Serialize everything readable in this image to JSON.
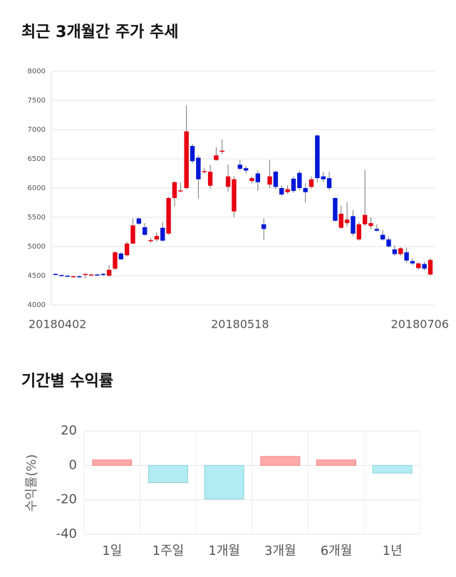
{
  "chart_data": [
    {
      "type": "candlestick",
      "title": "최근 3개월간 주가 추세",
      "categories": [
        "20180402",
        null,
        null,
        null,
        null,
        null,
        null,
        null,
        null,
        null,
        null,
        null,
        null,
        null,
        null,
        null,
        null,
        null,
        null,
        null,
        null,
        null,
        null,
        null,
        null,
        null,
        null,
        null,
        null,
        null,
        null,
        "20180518",
        null,
        null,
        null,
        null,
        null,
        null,
        null,
        null,
        null,
        null,
        null,
        null,
        null,
        null,
        null,
        null,
        null,
        null,
        null,
        null,
        null,
        null,
        null,
        null,
        null,
        null,
        null,
        null,
        null,
        null,
        null,
        "20180706"
      ],
      "open": [
        4530,
        4510,
        4500,
        4490,
        4490,
        4520,
        4510,
        4520,
        4530,
        4500,
        4620,
        4880,
        4850,
        5050,
        5480,
        5330,
        5100,
        5120,
        5320,
        5220,
        5830,
        5950,
        6000,
        6720,
        6520,
        6280,
        6040,
        6480,
        6630,
        6020,
        5600,
        6400,
        6340,
        6120,
        6250,
        5380,
        6060,
        6280,
        6000,
        5930,
        6160,
        6260,
        6000,
        6020,
        6900,
        6200,
        6170,
        5830,
        5320,
        5400,
        5520,
        5120,
        5380,
        5350,
        5300,
        5200,
        5120,
        4950,
        4870,
        4900,
        4750,
        4630,
        4700,
        4520
      ],
      "high": [
        4540,
        4520,
        4510,
        4500,
        4500,
        4530,
        4530,
        4530,
        4540,
        4680,
        4920,
        4900,
        5080,
        5480,
        5500,
        5400,
        5150,
        5250,
        5420,
        5850,
        6120,
        6100,
        7420,
        6760,
        6560,
        6350,
        6400,
        6700,
        6830,
        6400,
        6200,
        6480,
        6380,
        6200,
        6300,
        5480,
        6480,
        6300,
        6050,
        6050,
        6200,
        6300,
        6080,
        6200,
        6920,
        6280,
        6280,
        5840,
        5700,
        5760,
        5620,
        5420,
        6310,
        5500,
        5380,
        5280,
        5160,
        5020,
        4990,
        4980,
        4800,
        4730,
        4740,
        4800
      ],
      "low": [
        4510,
        4490,
        4480,
        4480,
        4470,
        4450,
        4500,
        4500,
        4490,
        4480,
        4600,
        4770,
        4830,
        5040,
        5370,
        5180,
        5060,
        5080,
        5080,
        5200,
        5680,
        5930,
        5980,
        6420,
        5820,
        6250,
        5990,
        6470,
        6580,
        5940,
        5500,
        6300,
        6250,
        6080,
        5950,
        5110,
        6000,
        5980,
        5860,
        5900,
        5920,
        5960,
        5750,
        5990,
        6100,
        6100,
        5960,
        5430,
        5300,
        5340,
        5180,
        5100,
        5350,
        5300,
        5250,
        5100,
        4980,
        4840,
        4840,
        4720,
        4680,
        4600,
        4590,
        4500
      ],
      "close": [
        4520,
        4500,
        4490,
        4490,
        4480,
        4530,
        4520,
        4510,
        4520,
        4600,
        4900,
        4780,
        5050,
        5360,
        5390,
        5200,
        5110,
        5180,
        5100,
        5830,
        6100,
        5960,
        6970,
        6460,
        6150,
        6290,
        6280,
        6560,
        6640,
        6200,
        6150,
        6330,
        6300,
        6170,
        6100,
        5300,
        6200,
        6020,
        5890,
        5980,
        5950,
        6000,
        5930,
        6150,
        6170,
        6150,
        6000,
        5440,
        5560,
        5460,
        5220,
        5380,
        5540,
        5400,
        5270,
        5120,
        5000,
        4870,
        4970,
        4760,
        4710,
        4710,
        4620,
        4770
      ],
      "up_color": "#e60012",
      "down_color": "#0018d6",
      "ylim": [
        4000,
        8000
      ],
      "yticks": [
        4000,
        4500,
        5000,
        5500,
        6000,
        6500,
        7000,
        7500,
        8000
      ],
      "grid": true
    },
    {
      "type": "bar",
      "title": "기간별 수익률",
      "y_label": "수익률(%)",
      "categories": [
        "1일",
        "1주일",
        "1개월",
        "3개월",
        "6개월",
        "1년"
      ],
      "values": [
        3.2,
        -10,
        -19.5,
        5.2,
        3.2,
        -4.5
      ],
      "positive_color": "#ffaaaa",
      "negative_color": "#b2ebf2",
      "ylim": [
        -40,
        20
      ],
      "yticks": [
        -40,
        -20,
        0,
        20
      ],
      "grid": true
    }
  ]
}
